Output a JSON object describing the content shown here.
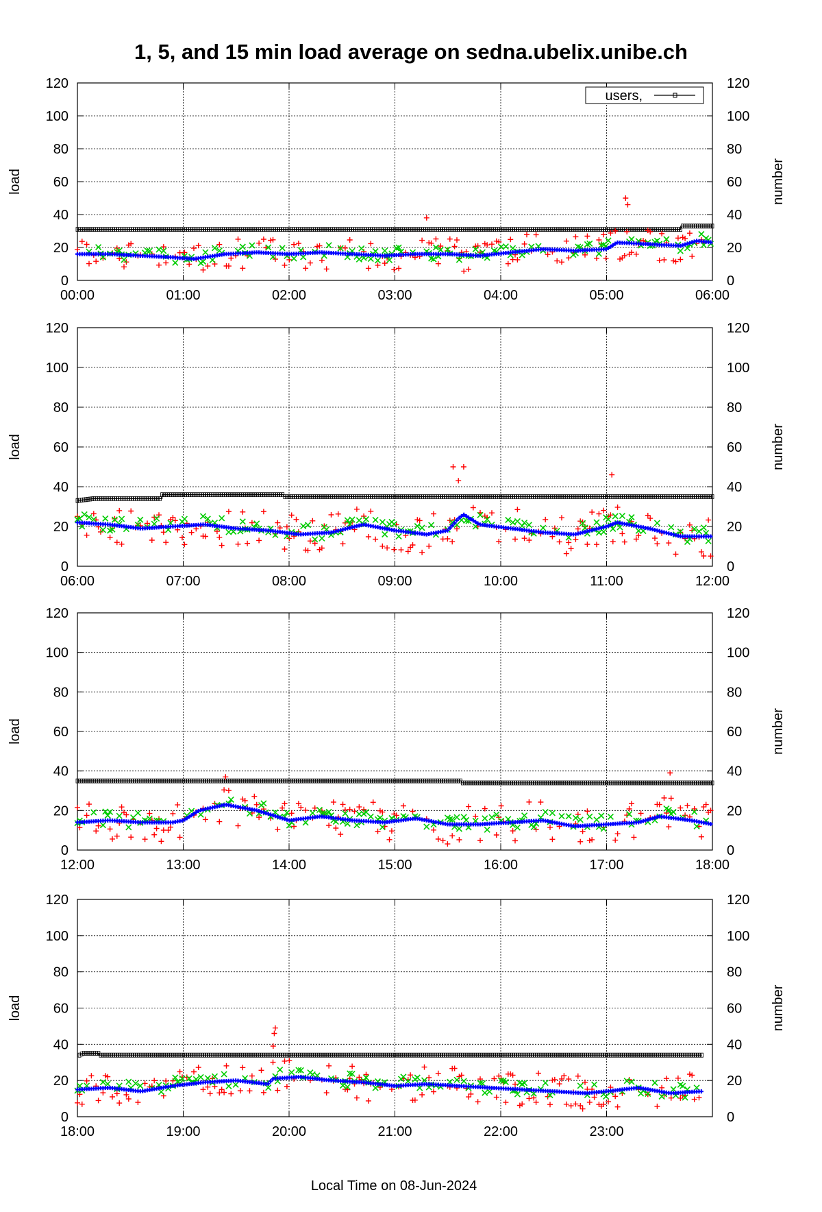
{
  "chart_data": {
    "type": "scatter",
    "title": "1, 5, and 15 min load average on sedna.ubelix.unibe.ch",
    "xlabel": "Local Time on 08-Jun-2024",
    "ylabel": "load",
    "y2label": "number",
    "ylim": [
      0,
      120
    ],
    "y2lim": [
      0,
      120
    ],
    "yticks": [
      "0",
      "20",
      "40",
      "60",
      "80",
      "100",
      "120"
    ],
    "grid": true,
    "legend": {
      "placement": "top-right",
      "entries": [
        "users,"
      ]
    },
    "colors": {
      "load_1min": "#ff0000",
      "load_5min": "#00cc00",
      "load_15min": "#0000ff",
      "users": "#000000"
    },
    "panels": [
      {
        "xticks": [
          "00:00",
          "01:00",
          "02:00",
          "03:00",
          "04:00",
          "05:00",
          "06:00"
        ],
        "hours": 6,
        "users": [
          [
            0,
            31
          ],
          [
            5.7,
            31
          ],
          [
            5.7,
            33
          ],
          [
            6,
            33
          ]
        ],
        "load_15min": [
          [
            0,
            16
          ],
          [
            0.3,
            16
          ],
          [
            0.6,
            15
          ],
          [
            0.9,
            14
          ],
          [
            1.1,
            13
          ],
          [
            1.4,
            16
          ],
          [
            1.7,
            17
          ],
          [
            2.0,
            16
          ],
          [
            2.3,
            17
          ],
          [
            2.6,
            16
          ],
          [
            2.9,
            15
          ],
          [
            3.2,
            16
          ],
          [
            3.5,
            16
          ],
          [
            3.8,
            15
          ],
          [
            4.1,
            17
          ],
          [
            4.4,
            19
          ],
          [
            4.7,
            18
          ],
          [
            5.0,
            19
          ],
          [
            5.1,
            23
          ],
          [
            5.4,
            22
          ],
          [
            5.7,
            21
          ],
          [
            5.85,
            24
          ],
          [
            6,
            23
          ]
        ],
        "spikes": [
          [
            5.18,
            50
          ],
          [
            3.3,
            38
          ],
          [
            5.2,
            46
          ]
        ]
      },
      {
        "xticks": [
          "06:00",
          "07:00",
          "08:00",
          "09:00",
          "10:00",
          "11:00",
          "12:00"
        ],
        "hours": 6,
        "users": [
          [
            0,
            33
          ],
          [
            0.15,
            34
          ],
          [
            0.8,
            34
          ],
          [
            0.8,
            36
          ],
          [
            1.95,
            36
          ],
          [
            1.95,
            35
          ],
          [
            6,
            35
          ]
        ],
        "load_15min": [
          [
            0,
            22
          ],
          [
            0.3,
            21
          ],
          [
            0.6,
            19
          ],
          [
            0.9,
            20
          ],
          [
            1.2,
            21
          ],
          [
            1.5,
            19
          ],
          [
            1.8,
            18
          ],
          [
            2.1,
            16
          ],
          [
            2.4,
            17
          ],
          [
            2.7,
            21
          ],
          [
            3.0,
            18
          ],
          [
            3.3,
            16
          ],
          [
            3.5,
            18
          ],
          [
            3.6,
            24
          ],
          [
            3.65,
            26
          ],
          [
            3.8,
            21
          ],
          [
            4.1,
            19
          ],
          [
            4.4,
            17
          ],
          [
            4.7,
            16
          ],
          [
            5.0,
            20
          ],
          [
            5.1,
            22
          ],
          [
            5.4,
            19
          ],
          [
            5.7,
            15
          ],
          [
            6,
            15
          ]
        ],
        "spikes": [
          [
            3.55,
            50
          ],
          [
            3.65,
            50
          ],
          [
            5.05,
            46
          ],
          [
            3.6,
            43
          ]
        ]
      },
      {
        "xticks": [
          "12:00",
          "13:00",
          "14:00",
          "15:00",
          "16:00",
          "17:00",
          "18:00"
        ],
        "hours": 6,
        "users": [
          [
            0,
            35
          ],
          [
            3.63,
            35
          ],
          [
            3.63,
            34
          ],
          [
            6,
            34
          ]
        ],
        "load_15min": [
          [
            0,
            14
          ],
          [
            0.3,
            15
          ],
          [
            0.6,
            14
          ],
          [
            0.9,
            14
          ],
          [
            1.0,
            15
          ],
          [
            1.15,
            20
          ],
          [
            1.4,
            23
          ],
          [
            1.7,
            20
          ],
          [
            2.0,
            15
          ],
          [
            2.3,
            17
          ],
          [
            2.6,
            15
          ],
          [
            2.9,
            14
          ],
          [
            3.2,
            16
          ],
          [
            3.5,
            13
          ],
          [
            3.8,
            13
          ],
          [
            4.1,
            14
          ],
          [
            4.4,
            15
          ],
          [
            4.7,
            12
          ],
          [
            5.0,
            13
          ],
          [
            5.3,
            14
          ],
          [
            5.5,
            17
          ],
          [
            5.8,
            15
          ],
          [
            6,
            13
          ]
        ],
        "spikes": [
          [
            1.4,
            37
          ],
          [
            5.6,
            39
          ]
        ]
      },
      {
        "xticks": [
          "18:00",
          "19:00",
          "20:00",
          "21:00",
          "22:00",
          "23:00"
        ],
        "hours": 6,
        "users": [
          [
            0.02,
            34
          ],
          [
            0.05,
            35
          ],
          [
            0.2,
            35
          ],
          [
            0.2,
            34
          ],
          [
            5.9,
            34
          ]
        ],
        "load_15min": [
          [
            0,
            15
          ],
          [
            0.3,
            16
          ],
          [
            0.6,
            14
          ],
          [
            0.9,
            17
          ],
          [
            1.2,
            19
          ],
          [
            1.5,
            20
          ],
          [
            1.8,
            18
          ],
          [
            1.85,
            21
          ],
          [
            2.1,
            22
          ],
          [
            2.4,
            20
          ],
          [
            2.7,
            19
          ],
          [
            3.0,
            17
          ],
          [
            3.3,
            18
          ],
          [
            3.6,
            17
          ],
          [
            3.9,
            16
          ],
          [
            4.2,
            15
          ],
          [
            4.5,
            14
          ],
          [
            4.8,
            13
          ],
          [
            5.0,
            14
          ],
          [
            5.3,
            16
          ],
          [
            5.6,
            13
          ],
          [
            5.9,
            14
          ]
        ],
        "spikes": [
          [
            1.87,
            49
          ],
          [
            1.86,
            46
          ],
          [
            1.85,
            39
          ]
        ]
      }
    ]
  }
}
